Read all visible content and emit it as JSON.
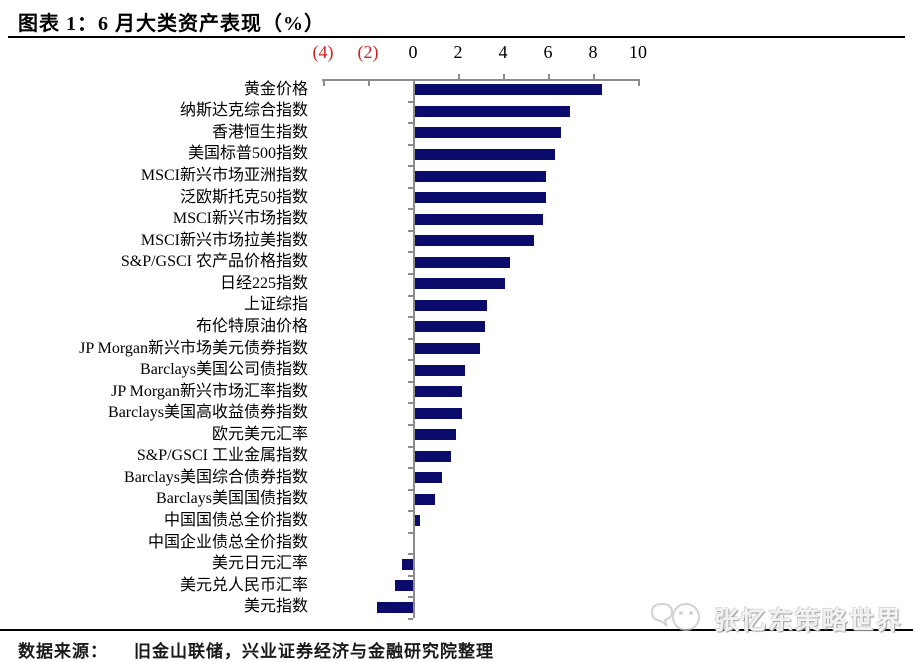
{
  "header": {
    "title": "图表 1：6 月大类资产表现（%）"
  },
  "chart_data": {
    "type": "bar",
    "orientation": "horizontal",
    "title": "6 月大类资产表现（%）",
    "xlabel": "",
    "ylabel": "",
    "xlim": [
      -4,
      10
    ],
    "grid": false,
    "legend": "none",
    "bar_color": "#0b0b6b",
    "axis_color": "#8c8c8c",
    "negative_tick_color": "#cc2222",
    "x_ticks": [
      {
        "label": "(4)",
        "value": -4,
        "negative": true
      },
      {
        "label": "(2)",
        "value": -2,
        "negative": true
      },
      {
        "label": "0",
        "value": 0,
        "negative": false
      },
      {
        "label": "2",
        "value": 2,
        "negative": false
      },
      {
        "label": "4",
        "value": 4,
        "negative": false
      },
      {
        "label": "6",
        "value": 6,
        "negative": false
      },
      {
        "label": "8",
        "value": 8,
        "negative": false
      },
      {
        "label": "10",
        "value": 10,
        "negative": false
      }
    ],
    "categories": [
      "黄金价格",
      "纳斯达克综合指数",
      "香港恒生指数",
      "美国标普500指数",
      "MSCI新兴市场亚洲指数",
      "泛欧斯托克50指数",
      "MSCI新兴市场指数",
      "MSCI新兴市场拉美指数",
      "S&P/GSCI 农产品价格指数",
      "日经225指数",
      "上证综指",
      "布伦特原油价格",
      "JP Morgan新兴市场美元债券指数",
      "Barclays美国公司债指数",
      "JP Morgan新兴市场汇率指数",
      "Barclays美国高收益债券指数",
      "欧元美元汇率",
      "S&P/GSCI 工业金属指数",
      "Barclays美国综合债券指数",
      "Barclays美国国债指数",
      "中国国债总全价指数",
      "中国企业债总全价指数",
      "美元日元汇率",
      "美元兑人民币汇率",
      "美元指数"
    ],
    "values": [
      8.3,
      6.9,
      6.5,
      6.2,
      5.8,
      5.8,
      5.7,
      5.3,
      4.2,
      4.0,
      3.2,
      3.1,
      2.9,
      2.2,
      2.1,
      2.1,
      1.8,
      1.6,
      1.2,
      0.9,
      0.2,
      0.0,
      -0.5,
      -0.8,
      -1.6
    ]
  },
  "footer": {
    "source_label": "数据来源：",
    "source_text": "旧金山联储，兴业证券经济与金融研究院整理"
  },
  "watermark": {
    "text": "张忆东策略世界"
  }
}
